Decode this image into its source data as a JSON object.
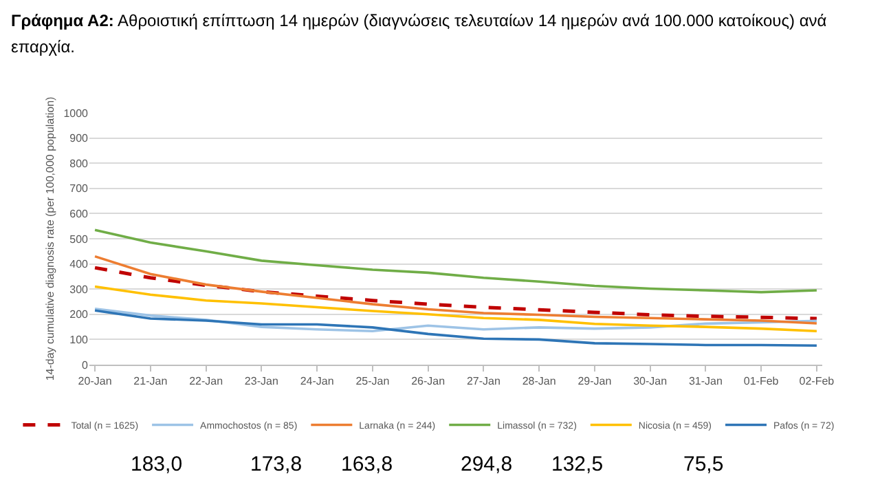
{
  "chart_data": {
    "type": "line",
    "title": "Γράφημα Α2:",
    "subtitle": "Αθροιστική επίπτωση 14 ημερών (διαγνώσεις τελευταίων 14 ημερών ανά 100.000 κατοίκους) ανά επαρχία.",
    "ylabel": "14-day cumulative diagnosis rate (per 100,000 population)",
    "categories": [
      "20-Jan",
      "21-Jan",
      "22-Jan",
      "23-Jan",
      "24-Jan",
      "25-Jan",
      "26-Jan",
      "27-Jan",
      "28-Jan",
      "29-Jan",
      "30-Jan",
      "31-Jan",
      "01-Feb",
      "02-Feb"
    ],
    "series": [
      {
        "name": "Total (n = 1625)",
        "color": "#c00000",
        "line_style": "dashed",
        "values": [
          385,
          345,
          315,
          290,
          272,
          255,
          240,
          228,
          218,
          208,
          198,
          192,
          188,
          183
        ]
      },
      {
        "name": "Ammochostos (n = 85)",
        "color": "#9dc3e6",
        "values": [
          222,
          195,
          178,
          150,
          140,
          133,
          155,
          140,
          148,
          143,
          148,
          163,
          168,
          174
        ]
      },
      {
        "name": "Larnaka (n = 244)",
        "color": "#ed7d31",
        "values": [
          430,
          360,
          318,
          290,
          265,
          240,
          220,
          205,
          198,
          190,
          185,
          180,
          175,
          164
        ]
      },
      {
        "name": "Limassol (n = 732)",
        "color": "#70ad47",
        "values": [
          535,
          485,
          450,
          413,
          395,
          377,
          365,
          345,
          330,
          313,
          302,
          295,
          288,
          295
        ]
      },
      {
        "name": "Nicosia (n = 459)",
        "color": "#ffc000",
        "values": [
          310,
          278,
          255,
          243,
          228,
          213,
          200,
          185,
          178,
          162,
          155,
          150,
          143,
          133
        ]
      },
      {
        "name": "Pafos (n = 72)",
        "color": "#2e75b6",
        "values": [
          215,
          183,
          175,
          160,
          160,
          148,
          122,
          103,
          100,
          85,
          82,
          78,
          78,
          76
        ]
      }
    ],
    "ylim": [
      0,
      1000
    ],
    "yticks": [
      0,
      100,
      200,
      300,
      400,
      500,
      600,
      700,
      800,
      900,
      1000
    ],
    "grid": "y",
    "legend": "bottom",
    "marker": "none",
    "line_style": "solid",
    "annotations": [
      "183,0",
      "173,8",
      "163,8",
      "294,8",
      "132,5",
      "75,5"
    ]
  }
}
